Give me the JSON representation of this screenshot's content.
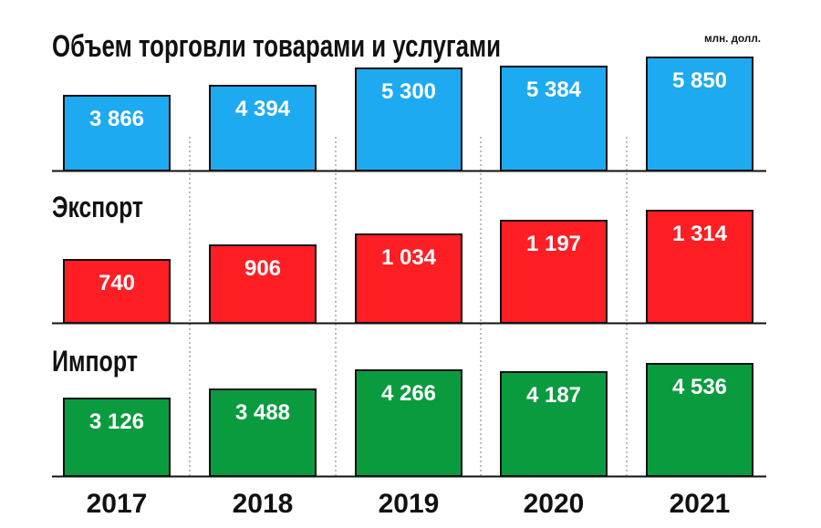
{
  "title": "Объем торговли товарами и услугами",
  "unit": "млн. долл.",
  "chart_data": {
    "type": "bar",
    "categories": [
      "2017",
      "2018",
      "2019",
      "2020",
      "2021"
    ],
    "series": [
      {
        "name": "",
        "values": [
          3866,
          4394,
          5300,
          5384,
          5850
        ],
        "labels": [
          "3 866",
          "4 394",
          "5 300",
          "5 384",
          "5 850"
        ],
        "color": "#1eaaf1"
      },
      {
        "name": "Экспорт",
        "values": [
          740,
          906,
          1034,
          1197,
          1314
        ],
        "labels": [
          "740",
          "906",
          "1 034",
          "1 197",
          "1 314"
        ],
        "color": "#ff1e24"
      },
      {
        "name": "Импорт",
        "values": [
          3126,
          3488,
          4266,
          4187,
          4536
        ],
        "labels": [
          "3 126",
          "3 488",
          "4 266",
          "4 187",
          "4 536"
        ],
        "color": "#0b9b3f"
      }
    ],
    "title": "Объем торговли товарами и услугами",
    "unit": "млн. долл.",
    "grid": "dotted vertical separators",
    "legend": "none"
  },
  "colors": {
    "bar_outline": "#111111",
    "label_text": "#ffffff",
    "text": "#111111"
  }
}
